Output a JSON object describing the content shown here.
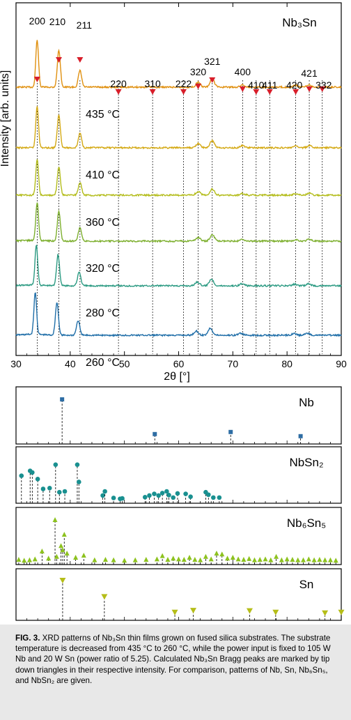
{
  "chart_data": [
    {
      "type": "line",
      "xlabel": "2θ [°]",
      "ylabel": "Intensity [arb. units]",
      "xlim": [
        30,
        90
      ],
      "x_ticks": [
        "30",
        "40",
        "50",
        "60",
        "70",
        "80",
        "90"
      ],
      "title": "Nb₃Sn",
      "series": [
        {
          "name": "435 °C",
          "color": "#E0900F"
        },
        {
          "name": "410 °C",
          "color": "#D4A914"
        },
        {
          "name": "360 °C",
          "color": "#B3BC1A"
        },
        {
          "name": "320 °C",
          "color": "#7DAF2E"
        },
        {
          "name": "280 °C",
          "color": "#2B9A82"
        },
        {
          "name": "260 °C",
          "color": "#1F6EA8"
        }
      ],
      "peaks": [
        {
          "label": "200",
          "x": 33.9
        },
        {
          "label": "210",
          "x": 37.9
        },
        {
          "label": "211",
          "x": 41.8
        },
        {
          "label": "220",
          "x": 48.9
        },
        {
          "label": "310",
          "x": 55.2
        },
        {
          "label": "222",
          "x": 60.9
        },
        {
          "label": "320",
          "x": 63.6
        },
        {
          "label": "321",
          "x": 66.2
        },
        {
          "label": "400",
          "x": 71.8
        },
        {
          "label": "410",
          "x": 74.3
        },
        {
          "label": "411",
          "x": 76.8
        },
        {
          "label": "420",
          "x": 81.6
        },
        {
          "label": "421",
          "x": 84.1
        },
        {
          "label": "332",
          "x": 86.5
        }
      ]
    },
    {
      "type": "scatter",
      "title": "Nb",
      "color": "#2E6DA4",
      "x": [
        38.5,
        55.6,
        69.6,
        82.5
      ],
      "y": [
        1.0,
        0.17,
        0.22,
        0.12
      ]
    },
    {
      "type": "scatter",
      "title": "NbSn₂",
      "color": "#199090",
      "x": [
        31.0,
        32.6,
        33.0,
        34.0,
        35.0,
        36.2,
        37.3,
        38.0,
        39.0,
        41.3,
        41.6,
        46.0,
        46.4,
        48.0,
        49.2,
        49.6,
        53.8,
        54.6,
        55.5,
        56.3,
        57.0,
        57.8,
        58.2,
        59.0,
        59.8,
        61.3,
        62.2,
        65.0,
        65.5,
        66.4,
        67.5
      ],
      "y": [
        0.6,
        0.72,
        0.68,
        0.52,
        0.28,
        0.3,
        0.87,
        0.2,
        0.22,
        0.87,
        0.45,
        0.12,
        0.22,
        0.06,
        0.04,
        0.05,
        0.08,
        0.12,
        0.16,
        0.12,
        0.18,
        0.22,
        0.13,
        0.07,
        0.17,
        0.16,
        0.09,
        0.2,
        0.14,
        0.07,
        0.07
      ]
    },
    {
      "type": "scatter",
      "title": "Nb₆Sn₅",
      "color": "#8DC21F",
      "x": [
        30.5,
        31.5,
        32.5,
        33.5,
        34.8,
        36.0,
        37.2,
        37.5,
        38.3,
        38.6,
        38.9,
        39.4,
        41.0,
        42.5,
        44.5,
        46.5,
        48.0,
        50.0,
        52.0,
        54.0,
        56.0,
        57.0,
        58.0,
        59.0,
        60.0,
        61.0,
        62.0,
        63.0,
        64.0,
        65.0,
        66.0,
        67.0,
        68.0,
        69.0,
        70.0,
        71.0,
        72.0,
        73.0,
        74.0,
        75.0,
        76.0,
        77.0,
        78.0,
        79.0,
        80.0,
        81.0,
        82.0,
        83.0,
        84.0,
        85.0,
        86.0,
        87.0,
        88.0,
        89.0
      ],
      "y": [
        0.05,
        0.03,
        0.04,
        0.06,
        0.25,
        0.08,
        1.0,
        0.12,
        0.38,
        0.28,
        0.65,
        0.2,
        0.1,
        0.15,
        0.04,
        0.05,
        0.04,
        0.03,
        0.04,
        0.05,
        0.06,
        0.14,
        0.05,
        0.08,
        0.06,
        0.05,
        0.1,
        0.05,
        0.04,
        0.12,
        0.06,
        0.2,
        0.18,
        0.08,
        0.1,
        0.06,
        0.05,
        0.07,
        0.04,
        0.05,
        0.06,
        0.04,
        0.12,
        0.04,
        0.06,
        0.05,
        0.04,
        0.04,
        0.06,
        0.04,
        0.05,
        0.04,
        0.04,
        0.03
      ]
    },
    {
      "type": "scatter",
      "title": "Sn",
      "color": "#B5BD18",
      "x": [
        38.6,
        46.3,
        59.3,
        62.7,
        73.1,
        77.9,
        87.0,
        90.0
      ],
      "y": [
        1.0,
        0.55,
        0.12,
        0.17,
        0.16,
        0.12,
        0.1,
        0.12
      ]
    }
  ],
  "caption": {
    "label": "FIG. 3.",
    "text": "XRD patterns of Nb₃Sn thin films grown on fused silica substrates. The substrate temperature is decreased from 435 °C to 260 °C, while the power input is fixed to 105 W Nb and 20 W Sn (power ratio of 5.25). Calculated Nb₃Sn Bragg peaks are marked by tip down triangles in their respective intensity. For comparison, patterns of Nb, Sn, Nb₆Sn₅, and NbSn₂ are given."
  }
}
